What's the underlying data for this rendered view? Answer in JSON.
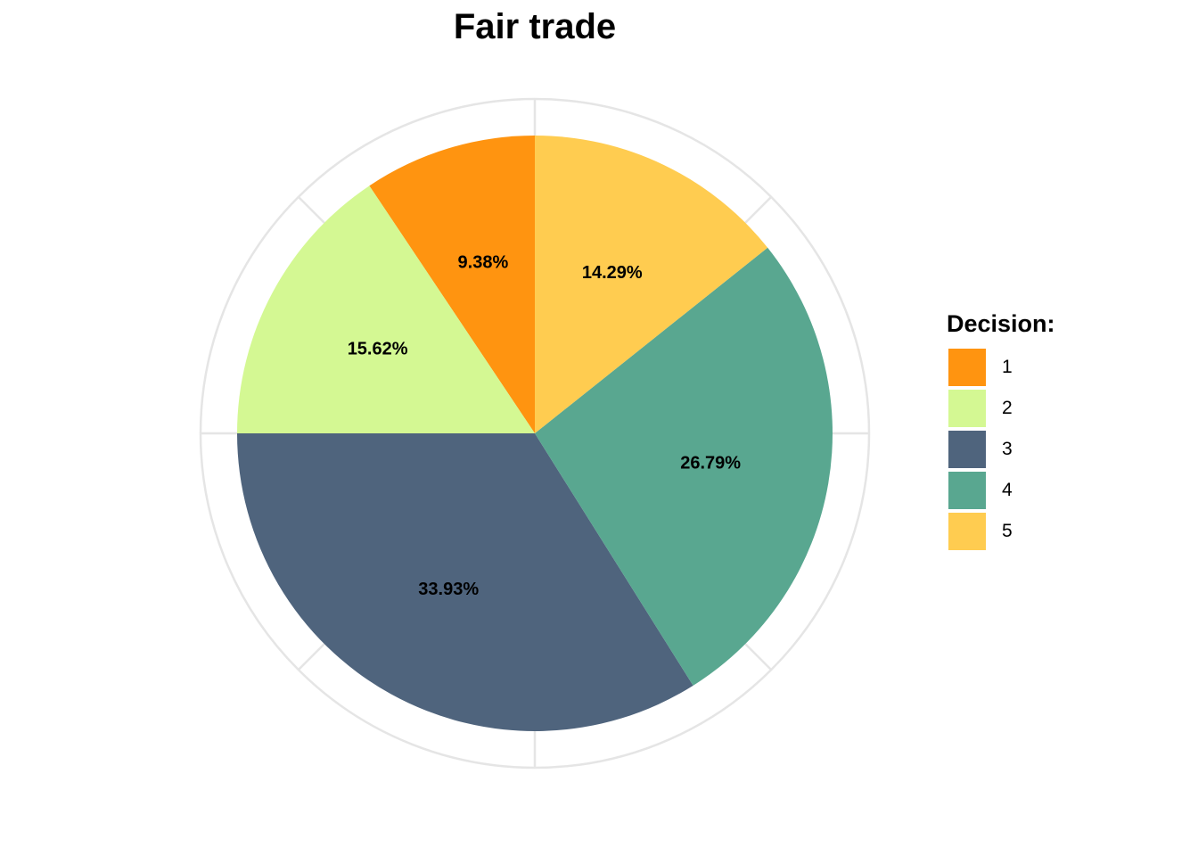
{
  "chart_data": {
    "type": "pie",
    "title": "Fair trade",
    "legend": {
      "title": "Decision:",
      "placement": "right"
    },
    "categories": [
      "1",
      "2",
      "3",
      "4",
      "5"
    ],
    "values": [
      9.38,
      15.62,
      33.93,
      26.79,
      14.29
    ],
    "labels": [
      "9.38%",
      "15.62%",
      "33.93%",
      "26.79%",
      "14.29%"
    ],
    "colors": [
      "#FF9410",
      "#D4F893",
      "#4F647D",
      "#59A790",
      "#FFCC50"
    ],
    "direction": "counterclockwise from top",
    "grid": true
  }
}
